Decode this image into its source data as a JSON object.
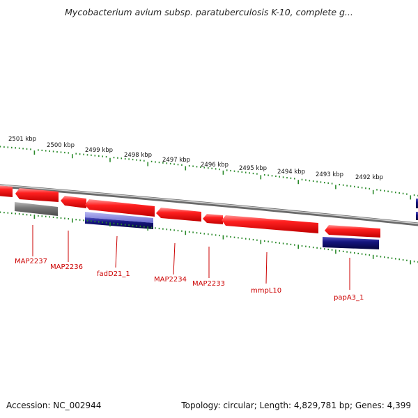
{
  "title": "Mycobacterium avium subsp. paratuberculosis K-10, complete g...",
  "scale": {
    "unit": "kbp",
    "ticks": [
      "2501 kbp",
      "2500 kbp",
      "2499 kbp",
      "2498 kbp",
      "2497 kbp",
      "2496 kbp",
      "2495 kbp",
      "2494 kbp",
      "2493 kbp",
      "2492 kbp"
    ]
  },
  "genes": [
    {
      "name": "MAP2237",
      "strand": "-",
      "feature": "CDS"
    },
    {
      "name": "MAP2236",
      "strand": "-",
      "feature": "CDS"
    },
    {
      "name": "fadD21_1",
      "strand": "-",
      "feature": "CDS"
    },
    {
      "name": "MAP2234",
      "strand": "-",
      "feature": "CDS"
    },
    {
      "name": "MAP2233",
      "strand": "-",
      "feature": "CDS"
    },
    {
      "name": "mmpL10",
      "strand": "-",
      "feature": "CDS"
    },
    {
      "name": "papA3_1",
      "strand": "-",
      "feature": "CDS"
    }
  ],
  "colors": {
    "cds": "#e8141c",
    "label": "#cc0000",
    "tick": "#2a8a2a",
    "backbone": "#9a9a9a",
    "gray_feature": "#6e6e6e",
    "blue_feature": "#10107a",
    "light_blue_feature": "#7a7ad8"
  },
  "footer": {
    "accession": "Accession: NC_002944",
    "summary": "Topology: circular; Length: 4,829,781 bp; Genes: 4,399"
  }
}
